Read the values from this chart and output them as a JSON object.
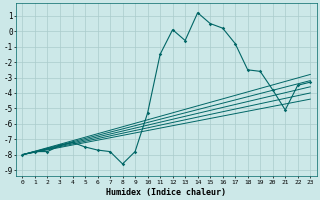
{
  "xlabel": "Humidex (Indice chaleur)",
  "background_color": "#cce8e8",
  "grid_color": "#aacccc",
  "line_color": "#006666",
  "xlim": [
    -0.5,
    23.5
  ],
  "ylim": [
    -9.4,
    1.8
  ],
  "xticks": [
    0,
    1,
    2,
    3,
    4,
    5,
    6,
    7,
    8,
    9,
    10,
    11,
    12,
    13,
    14,
    15,
    16,
    17,
    18,
    19,
    20,
    21,
    22,
    23
  ],
  "yticks": [
    1,
    0,
    -1,
    -2,
    -3,
    -4,
    -5,
    -6,
    -7,
    -8,
    -9
  ],
  "series": [
    [
      0,
      -8.0
    ],
    [
      1,
      -7.8
    ],
    [
      2,
      -7.8
    ],
    [
      3,
      -7.4
    ],
    [
      4,
      -7.2
    ],
    [
      5,
      -7.5
    ],
    [
      6,
      -7.7
    ],
    [
      7,
      -7.8
    ],
    [
      8,
      -8.6
    ],
    [
      9,
      -7.8
    ],
    [
      10,
      -5.3
    ],
    [
      11,
      -1.5
    ],
    [
      12,
      0.1
    ],
    [
      13,
      -0.6
    ],
    [
      14,
      1.2
    ],
    [
      15,
      0.5
    ],
    [
      16,
      0.2
    ],
    [
      17,
      -0.8
    ],
    [
      18,
      -2.5
    ],
    [
      19,
      -2.6
    ],
    [
      20,
      -3.8
    ],
    [
      21,
      -5.1
    ],
    [
      22,
      -3.5
    ],
    [
      23,
      -3.3
    ]
  ],
  "regression_lines": [
    {
      "x0": 0,
      "y0": -8.0,
      "x1": 23,
      "y1": -2.8
    },
    {
      "x0": 0,
      "y0": -8.0,
      "x1": 23,
      "y1": -3.2
    },
    {
      "x0": 0,
      "y0": -8.0,
      "x1": 23,
      "y1": -3.6
    },
    {
      "x0": 0,
      "y0": -8.0,
      "x1": 23,
      "y1": -4.0
    },
    {
      "x0": 0,
      "y0": -8.0,
      "x1": 23,
      "y1": -4.4
    }
  ]
}
